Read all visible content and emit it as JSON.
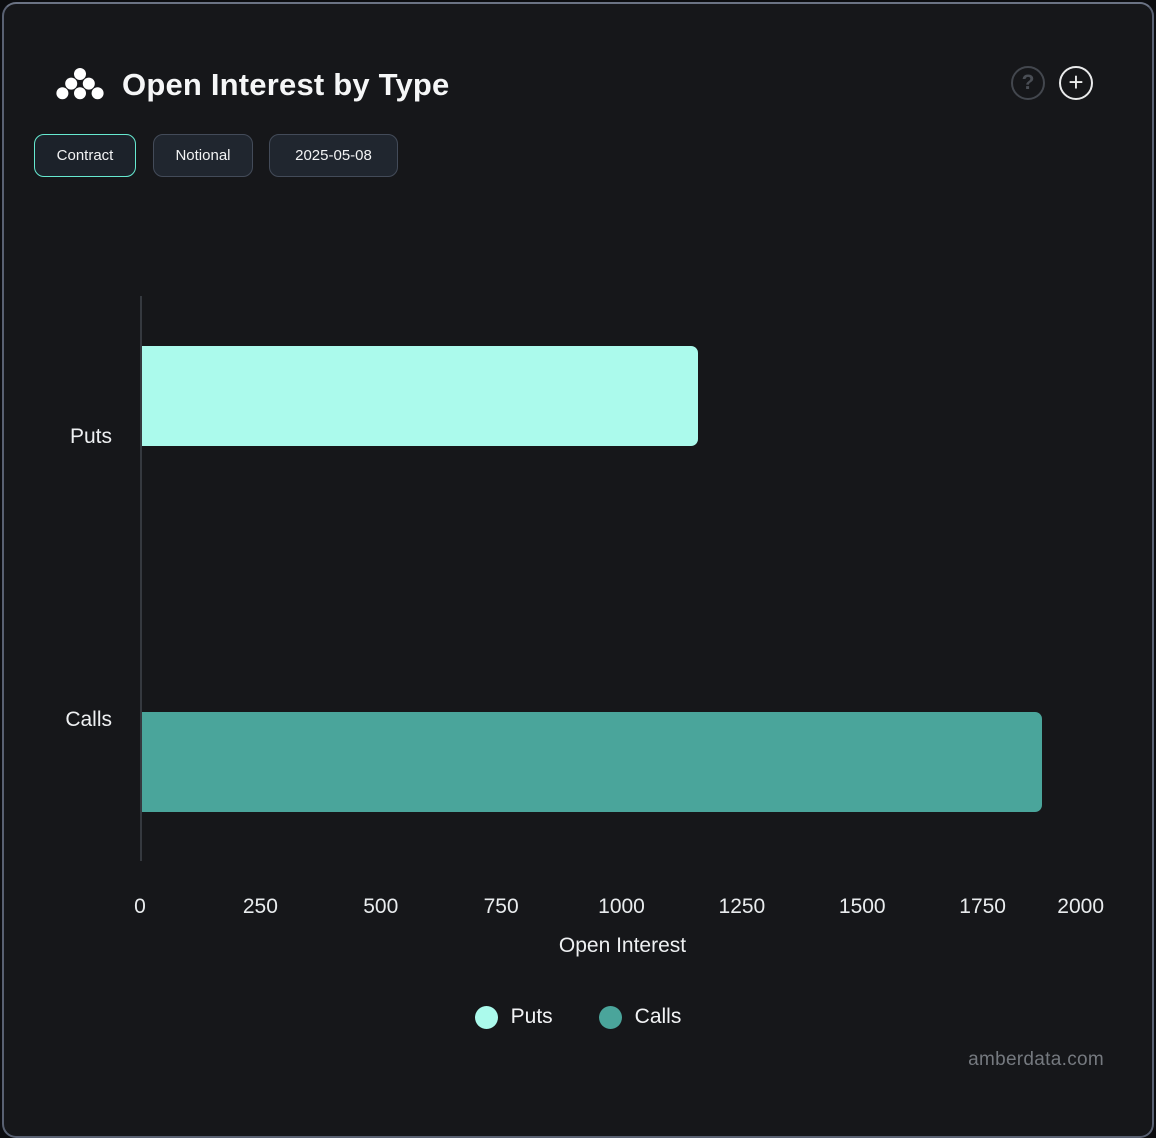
{
  "header": {
    "title": "Open Interest by Type",
    "help_label": "?",
    "add_label": "+"
  },
  "toolbar": {
    "buttons": [
      {
        "label": "Contract",
        "selected": true
      },
      {
        "label": "Notional",
        "selected": false
      },
      {
        "label": "2025-05-08",
        "selected": false
      }
    ]
  },
  "chart_data": {
    "type": "bar",
    "orientation": "horizontal",
    "title": "Open Interest by Type",
    "categories": [
      "Puts",
      "Calls"
    ],
    "series": [
      {
        "name": "Puts",
        "category": "Puts",
        "value": 1155,
        "color": "#ABFAEC"
      },
      {
        "name": "Calls",
        "category": "Calls",
        "value": 1870,
        "color": "#4AA59B"
      }
    ],
    "xlabel": "Open Interest",
    "xlim": [
      0,
      2000
    ],
    "xticks": [
      0,
      250,
      500,
      750,
      1000,
      1250,
      1500,
      1750,
      2000
    ],
    "grid": false,
    "legend_position": "bottom"
  },
  "footer": {
    "watermark": "amberdata.com"
  },
  "colors": {
    "background": "#16171A",
    "panel_border": "#596172",
    "accent_selected": "#66E9D0",
    "puts": "#ABFAEC",
    "calls": "#4AA59B",
    "axis_line": "#35393F"
  }
}
